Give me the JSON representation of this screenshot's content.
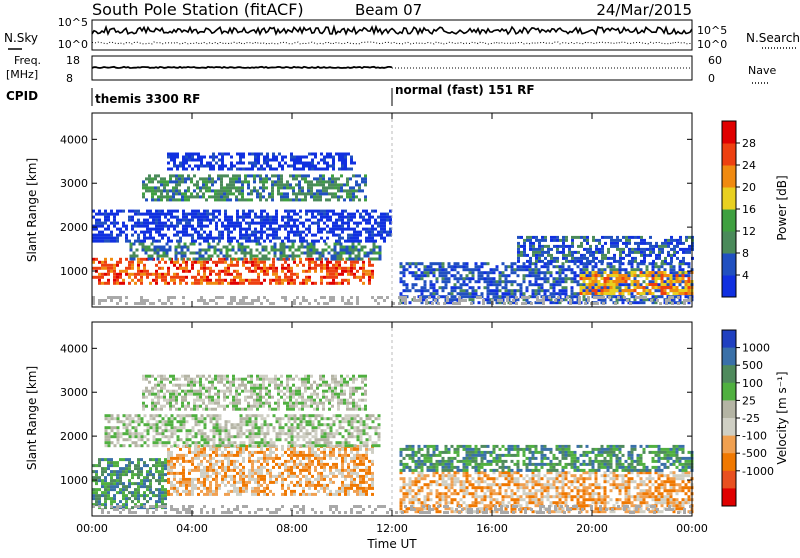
{
  "header": {
    "title": "South Pole Station (fitACF)",
    "beam": "Beam 07",
    "date": "24/Mar/2015"
  },
  "strips": {
    "nsky_label": "N.Sky",
    "nsearch_label": "N.Search",
    "noise_ticks": [
      "10^5",
      "10^0"
    ],
    "freq_label_1": "Freq.",
    "freq_label_2": "[MHz]",
    "freq_ticks": [
      "18",
      "8"
    ],
    "nave_label": "Nave",
    "nave_ticks": [
      "60",
      "0"
    ],
    "cpid_label": "CPID",
    "cpid_segments": [
      {
        "name": "themis 3300 RF",
        "start_hour": 0
      },
      {
        "name": "normal (fast) 151 RF",
        "start_hour": 12
      }
    ]
  },
  "colors": {
    "power_scale": [
      "#1030e0",
      "#2050c0",
      "#4a8a5a",
      "#3fa040",
      "#e8d020",
      "#f08a10",
      "#ee4010",
      "#e00000"
    ],
    "velocity_scale": [
      "#2040c0",
      "#3a70a8",
      "#4f8a5c",
      "#50b040",
      "#b4b4a4",
      "#cfcfc4",
      "#f0a050",
      "#f07800",
      "#e85020",
      "#e00000"
    ],
    "ground_scatter": "#a9a9a9"
  },
  "chart_data": [
    {
      "type": "heatmap",
      "name": "power",
      "ylabel": "Slant Range [km]",
      "yticks": [
        1000,
        2000,
        3000,
        4000
      ],
      "ylim": [
        180,
        4600
      ],
      "xlim": [
        0,
        24
      ],
      "colorbar_label": "Power [dB]",
      "colorbar_ticks": [
        4,
        8,
        12,
        16,
        20,
        24,
        28
      ],
      "colorbar_range": [
        0,
        32
      ],
      "regions": [
        {
          "t": [
            0.0,
            11.2
          ],
          "r": [
            700,
            1300
          ],
          "level": 28
        },
        {
          "t": [
            1.5,
            11.5
          ],
          "r": [
            1300,
            1650
          ],
          "level": 12
        },
        {
          "t": [
            0.0,
            11.9
          ],
          "r": [
            1700,
            2400
          ],
          "level": 4
        },
        {
          "t": [
            2.0,
            11.0
          ],
          "r": [
            2600,
            3200
          ],
          "level": 12
        },
        {
          "t": [
            3.0,
            10.5
          ],
          "r": [
            3300,
            3700
          ],
          "level": 4
        },
        {
          "t": [
            12.3,
            24.0
          ],
          "r": [
            300,
            1200
          ],
          "level": 8
        },
        {
          "t": [
            19.5,
            24.0
          ],
          "r": [
            500,
            1000
          ],
          "level": 24
        },
        {
          "t": [
            17.0,
            24.0
          ],
          "r": [
            1200,
            1800
          ],
          "level": 8
        }
      ]
    },
    {
      "type": "heatmap",
      "name": "velocity",
      "ylabel": "Slant Range [km]",
      "xlabel": "Time UT",
      "xticks": [
        "00:00",
        "04:00",
        "08:00",
        "12:00",
        "16:00",
        "20:00",
        "00:00"
      ],
      "yticks": [
        1000,
        2000,
        3000,
        4000
      ],
      "ylim": [
        180,
        4600
      ],
      "xlim": [
        0,
        24
      ],
      "colorbar_label": "Velocity [m s⁻¹]",
      "colorbar_ticks": [
        1000,
        500,
        100,
        25,
        -25,
        -100,
        -500,
        -1000
      ],
      "regions": [
        {
          "t": [
            0.0,
            3.0
          ],
          "r": [
            400,
            1500
          ],
          "level": "100"
        },
        {
          "t": [
            3.0,
            11.2
          ],
          "r": [
            700,
            1800
          ],
          "level": "-100"
        },
        {
          "t": [
            0.5,
            11.5
          ],
          "r": [
            1800,
            2500
          ],
          "level": "25"
        },
        {
          "t": [
            2.0,
            11.0
          ],
          "r": [
            2600,
            3400
          ],
          "level": "25"
        },
        {
          "t": [
            12.3,
            24.0
          ],
          "r": [
            300,
            1200
          ],
          "level": "-100"
        },
        {
          "t": [
            12.3,
            24.0
          ],
          "r": [
            1200,
            1800
          ],
          "level": "100"
        }
      ]
    }
  ]
}
